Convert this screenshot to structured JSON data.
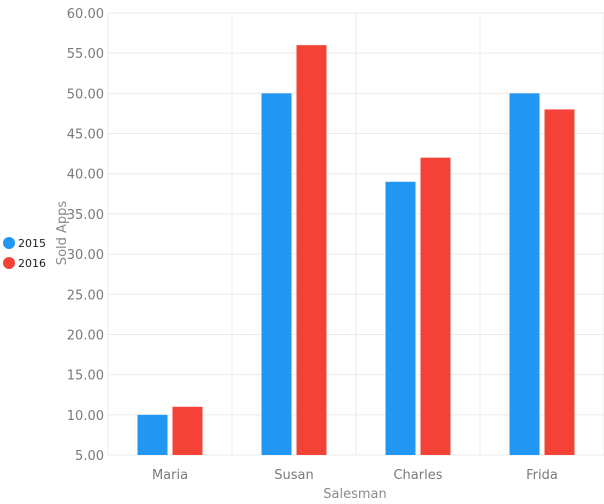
{
  "chart_data": {
    "type": "bar",
    "categories": [
      "Maria",
      "Susan",
      "Charles",
      "Frida"
    ],
    "series": [
      {
        "name": "2015",
        "values": [
          10,
          50,
          39,
          50
        ],
        "color": "#2196f3"
      },
      {
        "name": "2016",
        "values": [
          11,
          56,
          42,
          48
        ],
        "color": "#f44336"
      }
    ],
    "title": "",
    "xlabel": "Salesman",
    "ylabel": "Sold Apps",
    "ylim": [
      5,
      60
    ],
    "yticks": [
      "5.00",
      "10.00",
      "15.00",
      "20.00",
      "25.00",
      "30.00",
      "35.00",
      "40.00",
      "45.00",
      "50.00",
      "55.00",
      "60.00"
    ],
    "grid": true,
    "legend_position": "left",
    "colors": {
      "grid": "#ebebeb"
    }
  }
}
